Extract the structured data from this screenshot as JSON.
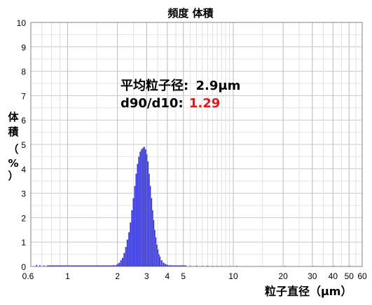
{
  "chart_data": {
    "type": "bar",
    "title": "頻度 体積",
    "xlabel": "粒子直径（μm）",
    "ylabel_chars": [
      "体",
      "積",
      "（",
      "%",
      "）"
    ],
    "x_scale": "log",
    "xlim": [
      0.6,
      60
    ],
    "ylim": [
      0,
      10
    ],
    "x_ticks": [
      {
        "value": 0.6,
        "label": "0.6"
      },
      {
        "value": 1,
        "label": "1"
      },
      {
        "value": 2,
        "label": "2"
      },
      {
        "value": 3,
        "label": "3"
      },
      {
        "value": 4,
        "label": "4"
      },
      {
        "value": 5,
        "label": "5"
      },
      {
        "value": 10,
        "label": "10"
      },
      {
        "value": 20,
        "label": "20"
      },
      {
        "value": 30,
        "label": "30"
      },
      {
        "value": 40,
        "label": "40"
      },
      {
        "value": 50,
        "label": "50"
      },
      {
        "value": 60,
        "label": "60"
      }
    ],
    "y_ticks": [
      "0",
      "1",
      "2",
      "3",
      "4",
      "5",
      "6",
      "7",
      "8",
      "9",
      "10"
    ],
    "bar_color": "#3a3ad6",
    "grid": true,
    "annotations": {
      "mean_label": "平均粒子径:",
      "mean_value": "2.9μm",
      "ratio_label": "d90/d10:",
      "ratio_value": "1.29",
      "ratio_value_color": "#e8141c"
    },
    "bins": [
      {
        "x": 1.7,
        "y": 0.01
      },
      {
        "x": 1.8,
        "y": 0.03
      },
      {
        "x": 1.9,
        "y": 0.05
      },
      {
        "x": 2.0,
        "y": 0.1
      },
      {
        "x": 2.05,
        "y": 0.15
      },
      {
        "x": 2.1,
        "y": 0.25
      },
      {
        "x": 2.15,
        "y": 0.35
      },
      {
        "x": 2.2,
        "y": 0.55
      },
      {
        "x": 2.25,
        "y": 0.8
      },
      {
        "x": 2.3,
        "y": 1.1
      },
      {
        "x": 2.35,
        "y": 1.4
      },
      {
        "x": 2.4,
        "y": 1.8
      },
      {
        "x": 2.45,
        "y": 2.3
      },
      {
        "x": 2.5,
        "y": 2.8
      },
      {
        "x": 2.55,
        "y": 3.3
      },
      {
        "x": 2.6,
        "y": 3.8
      },
      {
        "x": 2.65,
        "y": 4.2
      },
      {
        "x": 2.7,
        "y": 4.5
      },
      {
        "x": 2.75,
        "y": 4.7
      },
      {
        "x": 2.8,
        "y": 4.8
      },
      {
        "x": 2.85,
        "y": 4.85
      },
      {
        "x": 2.9,
        "y": 4.9
      },
      {
        "x": 2.95,
        "y": 4.8
      },
      {
        "x": 3.0,
        "y": 4.6
      },
      {
        "x": 3.05,
        "y": 4.3
      },
      {
        "x": 3.1,
        "y": 3.8
      },
      {
        "x": 3.15,
        "y": 3.3
      },
      {
        "x": 3.2,
        "y": 2.8
      },
      {
        "x": 3.25,
        "y": 2.3
      },
      {
        "x": 3.3,
        "y": 1.9
      },
      {
        "x": 3.35,
        "y": 1.5
      },
      {
        "x": 3.4,
        "y": 1.2
      },
      {
        "x": 3.45,
        "y": 0.9
      },
      {
        "x": 3.5,
        "y": 0.7
      },
      {
        "x": 3.55,
        "y": 0.5
      },
      {
        "x": 3.6,
        "y": 0.4
      },
      {
        "x": 3.7,
        "y": 0.25
      },
      {
        "x": 3.8,
        "y": 0.15
      },
      {
        "x": 3.9,
        "y": 0.1
      },
      {
        "x": 4.0,
        "y": 0.07
      },
      {
        "x": 4.2,
        "y": 0.05
      },
      {
        "x": 4.4,
        "y": 0.03
      },
      {
        "x": 4.7,
        "y": 0.02
      },
      {
        "x": 5.0,
        "y": 0.01
      }
    ],
    "baseline_points": [
      {
        "x": 0.65,
        "y": 0.05
      },
      {
        "x": 0.68,
        "y": 0.04
      },
      {
        "x": 0.72,
        "y": 0.03
      },
      {
        "x": 5.5,
        "y": 0.02
      },
      {
        "x": 6.0,
        "y": 0.02
      },
      {
        "x": 6.5,
        "y": 0.01
      },
      {
        "x": 7.0,
        "y": 0.02
      },
      {
        "x": 7.5,
        "y": 0.01
      },
      {
        "x": 8.0,
        "y": 0.01
      },
      {
        "x": 8.5,
        "y": 0.01
      },
      {
        "x": 9.5,
        "y": 0.01
      },
      {
        "x": 10.5,
        "y": 0.01
      },
      {
        "x": 20.5,
        "y": 0.01
      },
      {
        "x": 30.5,
        "y": 0.01
      },
      {
        "x": 40.5,
        "y": 0.01
      },
      {
        "x": 50.5,
        "y": 0.01
      }
    ]
  }
}
